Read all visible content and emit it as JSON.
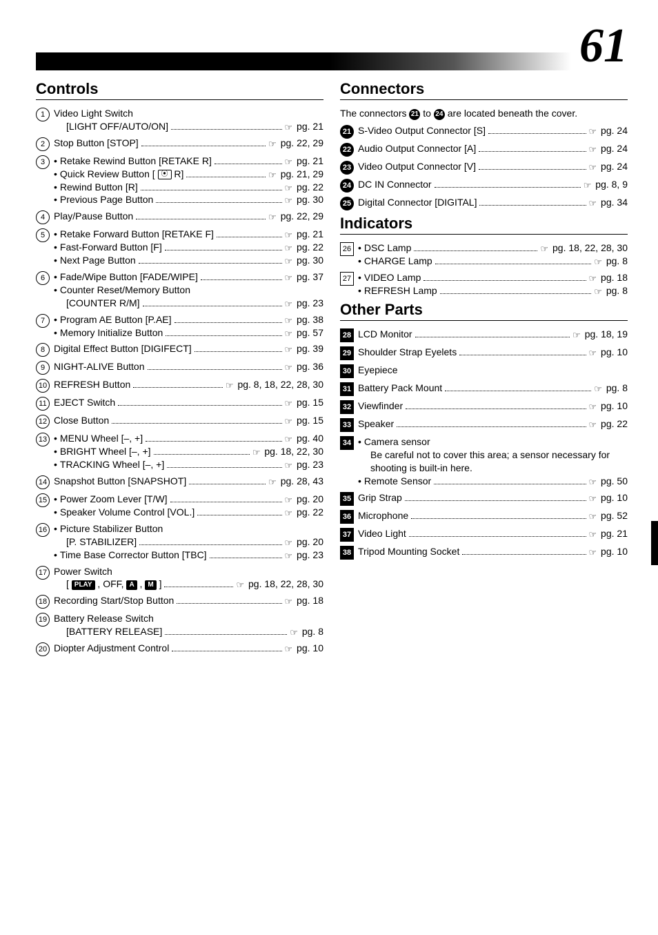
{
  "page_number": "61",
  "colors": {
    "text": "#000000",
    "bg": "#ffffff",
    "gradient_start": "#000000",
    "gradient_end": "#ffffff"
  },
  "typography": {
    "body_size": 14,
    "title_size": 22,
    "pagenum_size": 70
  },
  "ref_glyph": "☞",
  "left": {
    "section": "Controls",
    "items": [
      {
        "num": "1",
        "marker": "circle",
        "lines": [
          {
            "label": "Video Light Switch"
          },
          {
            "label": "[LIGHT OFF/AUTO/ON]",
            "page": "pg. 21",
            "indent": true,
            "ref": true
          }
        ]
      },
      {
        "num": "2",
        "marker": "circle",
        "lines": [
          {
            "label": "Stop Button [STOP]",
            "page": "pg. 22, 29",
            "ref": true
          }
        ]
      },
      {
        "num": "3",
        "marker": "circle",
        "lines": [
          {
            "bullet": true,
            "label": "Retake Rewind Button [RETAKE R]",
            "page": "pg. 21",
            "ref": true
          },
          {
            "bullet": true,
            "label_html": "Quick Review Button [ <span class=\"inline-icon box-outline\">⦿</span> R]",
            "page": "pg. 21, 29",
            "ref": true
          },
          {
            "bullet": true,
            "label": "Rewind Button [R]",
            "page": "pg. 22",
            "ref": true
          },
          {
            "bullet": true,
            "label": "Previous Page Button",
            "page": "pg. 30",
            "ref": true
          }
        ]
      },
      {
        "num": "4",
        "marker": "circle",
        "lines": [
          {
            "label": "Play/Pause Button",
            "page": "pg. 22, 29",
            "ref": true
          }
        ]
      },
      {
        "num": "5",
        "marker": "circle",
        "lines": [
          {
            "bullet": true,
            "label": "Retake Forward Button [RETAKE F]",
            "page": "pg. 21",
            "ref": true
          },
          {
            "bullet": true,
            "label": "Fast-Forward Button [F]",
            "page": "pg. 22",
            "ref": true
          },
          {
            "bullet": true,
            "label": "Next Page Button",
            "page": "pg. 30",
            "ref": true
          }
        ]
      },
      {
        "num": "6",
        "marker": "circle",
        "lines": [
          {
            "bullet": true,
            "label": "Fade/Wipe Button [FADE/WIPE]",
            "page": "pg. 37",
            "ref": true
          },
          {
            "bullet": true,
            "label": "Counter Reset/Memory Button"
          },
          {
            "label": "[COUNTER R/M]",
            "page": "pg. 23",
            "indent": true,
            "ref": true
          }
        ]
      },
      {
        "num": "7",
        "marker": "circle",
        "lines": [
          {
            "bullet": true,
            "label": "Program AE Button [P.AE]",
            "page": "pg. 38",
            "ref": true
          },
          {
            "bullet": true,
            "label": "Memory Initialize Button",
            "page": "pg. 57",
            "ref": true
          }
        ]
      },
      {
        "num": "8",
        "marker": "circle",
        "lines": [
          {
            "label": "Digital Effect Button [DIGIFECT]",
            "page": "pg. 39",
            "ref": true
          }
        ]
      },
      {
        "num": "9",
        "marker": "circle",
        "lines": [
          {
            "label": "NIGHT-ALIVE Button",
            "page": "pg. 36",
            "ref": true
          }
        ]
      },
      {
        "num": "10",
        "marker": "circle",
        "lines": [
          {
            "label": "REFRESH Button",
            "page": "pg. 8, 18, 22, 28, 30",
            "ref": true
          }
        ]
      },
      {
        "num": "11",
        "marker": "circle",
        "lines": [
          {
            "label": "EJECT Switch",
            "page": "pg. 15",
            "ref": true
          }
        ]
      },
      {
        "num": "12",
        "marker": "circle",
        "lines": [
          {
            "label": "Close Button",
            "page": "pg. 15",
            "ref": true
          }
        ]
      },
      {
        "num": "13",
        "marker": "circle",
        "lines": [
          {
            "bullet": true,
            "label": "MENU Wheel [–, +]",
            "page": "pg. 40",
            "ref": true
          },
          {
            "bullet": true,
            "label": "BRIGHT Wheel [–, +]",
            "page": "pg. 18, 22, 30",
            "ref": true
          },
          {
            "bullet": true,
            "label": "TRACKING Wheel [–, +]",
            "page": "pg. 23",
            "ref": true
          }
        ]
      },
      {
        "num": "14",
        "marker": "circle",
        "lines": [
          {
            "label": "Snapshot Button [SNAPSHOT]",
            "page": "pg. 28, 43",
            "ref": true
          }
        ]
      },
      {
        "num": "15",
        "marker": "circle",
        "lines": [
          {
            "bullet": true,
            "label": "Power Zoom Lever [T/W]",
            "page": "pg. 20",
            "ref": true
          },
          {
            "bullet": true,
            "label": "Speaker Volume Control [VOL.]",
            "page": "pg. 22",
            "ref": true
          }
        ]
      },
      {
        "num": "16",
        "marker": "circle",
        "lines": [
          {
            "bullet": true,
            "label": "Picture Stabilizer Button"
          },
          {
            "label": "[P. STABILIZER]",
            "page": "pg. 20",
            "indent": true,
            "ref": true
          },
          {
            "bullet": true,
            "label": "Time Base Corrector Button [TBC]",
            "page": "pg. 23",
            "ref": true
          }
        ]
      },
      {
        "num": "17",
        "marker": "circle",
        "lines": [
          {
            "label": "Power Switch"
          },
          {
            "label_html": "[ <span class=\"inline-icon box-solid\">PLAY</span> , OFF, <span class=\"inline-icon box-solid\">A</span> , <span class=\"inline-icon box-solid\">M</span> ]",
            "page": "pg. 18, 22, 28, 30",
            "indent": true,
            "ref": true
          }
        ]
      },
      {
        "num": "18",
        "marker": "circle",
        "lines": [
          {
            "label": "Recording Start/Stop Button",
            "page": "pg. 18",
            "ref": true
          }
        ]
      },
      {
        "num": "19",
        "marker": "circle",
        "lines": [
          {
            "label": "Battery Release Switch"
          },
          {
            "label": "[BATTERY RELEASE]",
            "page": "pg. 8",
            "indent": true,
            "ref": true
          }
        ]
      },
      {
        "num": "20",
        "marker": "circle",
        "lines": [
          {
            "label": "Diopter Adjustment Control",
            "page": "pg. 10",
            "ref": true
          }
        ]
      }
    ]
  },
  "right": [
    {
      "section": "Connectors",
      "intro_html": "The connectors <span class=\"marker solid-circle\" style=\"width:16px;height:16px;font-size:10px;vertical-align:middle\">21</span> to <span class=\"marker solid-circle\" style=\"width:16px;height:16px;font-size:10px;vertical-align:middle\">24</span> are located beneath the cover.",
      "items": [
        {
          "num": "21",
          "marker": "solid-circle",
          "lines": [
            {
              "label": "S-Video Output Connector [S]",
              "page": "pg. 24",
              "ref": true
            }
          ]
        },
        {
          "num": "22",
          "marker": "solid-circle",
          "lines": [
            {
              "label": "Audio Output Connector [A]",
              "page": "pg. 24",
              "ref": true
            }
          ]
        },
        {
          "num": "23",
          "marker": "solid-circle",
          "lines": [
            {
              "label": "Video Output Connector [V]",
              "page": "pg. 24",
              "ref": true
            }
          ]
        },
        {
          "num": "24",
          "marker": "solid-circle",
          "lines": [
            {
              "label": "DC IN Connector",
              "page": "pg. 8, 9",
              "ref": true
            }
          ]
        },
        {
          "num": "25",
          "marker": "solid-circle",
          "lines": [
            {
              "label": "Digital Connector [DIGITAL]",
              "page": "pg. 34",
              "ref": true
            }
          ]
        }
      ]
    },
    {
      "section": "Indicators",
      "items": [
        {
          "num": "26",
          "marker": "box",
          "lines": [
            {
              "bullet": true,
              "label": "DSC Lamp",
              "page": "pg. 18, 22, 28, 30",
              "ref": true
            },
            {
              "bullet": true,
              "label": "CHARGE Lamp",
              "page": "pg. 8",
              "ref": true
            }
          ]
        },
        {
          "num": "27",
          "marker": "box",
          "lines": [
            {
              "bullet": true,
              "label": "VIDEO Lamp",
              "page": "pg. 18",
              "ref": true
            },
            {
              "bullet": true,
              "label": "REFRESH Lamp",
              "page": "pg. 8",
              "ref": true
            }
          ]
        }
      ]
    },
    {
      "section": "Other Parts",
      "items": [
        {
          "num": "28",
          "marker": "solid-box",
          "lines": [
            {
              "label": "LCD Monitor",
              "page": "pg. 18, 19",
              "ref": true
            }
          ]
        },
        {
          "num": "29",
          "marker": "solid-box",
          "lines": [
            {
              "label": "Shoulder Strap Eyelets",
              "page": "pg. 10",
              "ref": true
            }
          ]
        },
        {
          "num": "30",
          "marker": "solid-box",
          "lines": [
            {
              "label": "Eyepiece"
            }
          ]
        },
        {
          "num": "31",
          "marker": "solid-box",
          "lines": [
            {
              "label": "Battery Pack Mount",
              "page": "pg. 8",
              "ref": true
            }
          ]
        },
        {
          "num": "32",
          "marker": "solid-box",
          "lines": [
            {
              "label": "Viewfinder",
              "page": "pg. 10",
              "ref": true
            }
          ]
        },
        {
          "num": "33",
          "marker": "solid-box",
          "lines": [
            {
              "label": "Speaker",
              "page": "pg. 22",
              "ref": true
            }
          ]
        },
        {
          "num": "34",
          "marker": "solid-box",
          "lines": [
            {
              "bullet": true,
              "label": "Camera sensor"
            },
            {
              "note": "Be careful not to cover this area; a sensor necessary for shooting is built-in here.",
              "indent": true
            },
            {
              "bullet": true,
              "label": "Remote Sensor",
              "page": "pg. 50",
              "ref": true
            }
          ]
        },
        {
          "num": "35",
          "marker": "solid-box",
          "lines": [
            {
              "label": "Grip Strap",
              "page": "pg. 10",
              "ref": true
            }
          ]
        },
        {
          "num": "36",
          "marker": "solid-box",
          "lines": [
            {
              "label": "Microphone",
              "page": "pg. 52",
              "ref": true
            }
          ]
        },
        {
          "num": "37",
          "marker": "solid-box",
          "lines": [
            {
              "label": "Video Light",
              "page": "pg. 21",
              "ref": true
            }
          ]
        },
        {
          "num": "38",
          "marker": "solid-box",
          "lines": [
            {
              "label": "Tripod Mounting Socket",
              "page": "pg. 10",
              "ref": true
            }
          ]
        }
      ]
    }
  ]
}
